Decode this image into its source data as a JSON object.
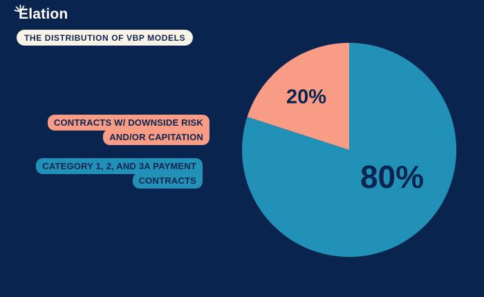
{
  "page": {
    "background_color": "#0A2450"
  },
  "header": {
    "logo_text": "Elation",
    "logo_icon": "sparkle-rays-icon",
    "title_badge": "THE DISTRIBUTION OF VBP MODELS",
    "badge_bg_color": "#F8F2E7",
    "text_navy_color": "#0A2450"
  },
  "callouts": {
    "downside": {
      "line1": "CONTRACTS W/ DOWNSIDE RISK",
      "line2": "AND/OR CAPITATION",
      "color": "#F99C85"
    },
    "category": {
      "line1": "CATEGORY 1, 2, AND 3A PAYMENT",
      "line2": "CONTRACTS",
      "color": "#2191B8"
    }
  },
  "chart_data": {
    "type": "pie",
    "title": "THE DISTRIBUTION OF VBP MODELS",
    "start_angle": "12-oclock",
    "direction": "clockwise",
    "legend_position": "left-callouts",
    "slices": [
      {
        "name": "Category 1, 2, and 3A payment contracts",
        "value": 80,
        "label": "80%",
        "color": "#2191B8"
      },
      {
        "name": "Contracts w/ downside risk and/or capitation",
        "value": 20,
        "label": "20%",
        "color": "#F99C85"
      }
    ]
  }
}
